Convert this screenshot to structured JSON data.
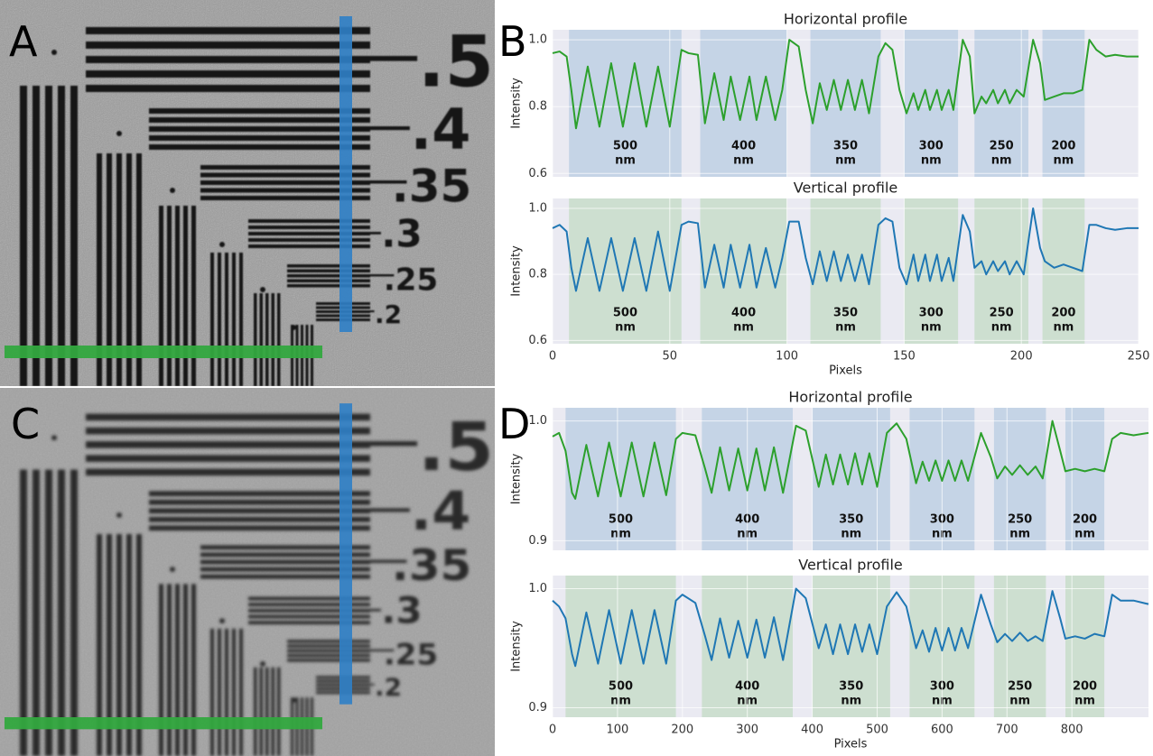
{
  "panels": [
    {
      "letter": "A",
      "target_labels": [
        ".5",
        ".4",
        ".35",
        ".3",
        ".25",
        ".2"
      ]
    },
    {
      "letter": "B"
    },
    {
      "letter": "C",
      "target_labels": [
        ".5",
        ".4",
        ".35",
        ".3",
        ".25",
        ".2"
      ]
    },
    {
      "letter": "D"
    }
  ],
  "chart_data": [
    {
      "type": "line",
      "title": "Horizontal profile",
      "ylabel": "Intensity",
      "x": [
        0,
        3,
        6,
        8,
        10,
        15,
        20,
        25,
        30,
        35,
        40,
        45,
        50,
        55,
        58,
        62,
        65,
        69,
        73,
        76,
        80,
        84,
        87,
        91,
        95,
        98,
        101,
        105,
        108,
        111,
        114,
        117,
        120,
        123,
        126,
        129,
        132,
        135,
        139,
        142,
        145,
        148,
        151,
        154,
        156,
        159,
        161,
        164,
        166,
        169,
        171,
        175,
        178,
        180,
        183,
        185,
        188,
        190,
        193,
        195,
        198,
        201,
        205,
        208,
        210,
        214,
        218,
        222,
        226,
        229,
        232,
        236,
        240,
        245,
        250
      ],
      "series": [
        {
          "color": "#2ca02c",
          "values": [
            0.96,
            0.965,
            0.95,
            0.85,
            0.735,
            0.92,
            0.74,
            0.93,
            0.74,
            0.93,
            0.74,
            0.92,
            0.74,
            0.97,
            0.96,
            0.955,
            0.75,
            0.9,
            0.76,
            0.89,
            0.76,
            0.89,
            0.76,
            0.89,
            0.76,
            0.85,
            1.0,
            0.98,
            0.85,
            0.75,
            0.87,
            0.79,
            0.88,
            0.79,
            0.88,
            0.79,
            0.88,
            0.78,
            0.95,
            0.99,
            0.97,
            0.85,
            0.78,
            0.84,
            0.79,
            0.85,
            0.79,
            0.85,
            0.79,
            0.85,
            0.79,
            1.0,
            0.95,
            0.78,
            0.83,
            0.81,
            0.85,
            0.81,
            0.85,
            0.81,
            0.85,
            0.83,
            1.0,
            0.93,
            0.82,
            0.83,
            0.84,
            0.84,
            0.85,
            1.0,
            0.97,
            0.95,
            0.955,
            0.95,
            0.95
          ]
        }
      ],
      "xlim": [
        0,
        250
      ],
      "xticks": [
        0,
        50,
        100,
        150,
        200,
        250
      ],
      "xtick_labels": false,
      "ylim": [
        0.59,
        1.03
      ],
      "yticks": [
        0.6,
        0.8,
        {
          "value": 1,
          "label": "1.0"
        }
      ],
      "grid": true,
      "region_color": "#c5d4e6",
      "regions": [
        {
          "name": "500",
          "unit": "nm",
          "start": 7,
          "end": 55
        },
        {
          "name": "400",
          "unit": "nm",
          "start": 63,
          "end": 100
        },
        {
          "name": "350",
          "unit": "nm",
          "start": 110,
          "end": 140
        },
        {
          "name": "300",
          "unit": "nm",
          "start": 150,
          "end": 173
        },
        {
          "name": "250",
          "unit": "nm",
          "start": 180,
          "end": 203
        },
        {
          "name": "200",
          "unit": "nm",
          "start": 209,
          "end": 227
        }
      ]
    },
    {
      "type": "line",
      "title": "Vertical profile",
      "ylabel": "Intensity",
      "xlabel": "Pixels",
      "x": [
        0,
        3,
        6,
        8,
        10,
        15,
        20,
        25,
        30,
        35,
        40,
        45,
        50,
        55,
        58,
        62,
        65,
        69,
        73,
        76,
        80,
        84,
        87,
        91,
        95,
        98,
        101,
        105,
        108,
        111,
        114,
        117,
        120,
        123,
        126,
        129,
        132,
        135,
        139,
        142,
        145,
        148,
        151,
        154,
        156,
        159,
        161,
        164,
        166,
        169,
        171,
        175,
        178,
        180,
        183,
        185,
        188,
        190,
        193,
        195,
        198,
        201,
        205,
        208,
        210,
        214,
        218,
        222,
        226,
        229,
        232,
        236,
        240,
        245,
        250
      ],
      "series": [
        {
          "color": "#1f77b4",
          "values": [
            0.94,
            0.95,
            0.93,
            0.82,
            0.75,
            0.91,
            0.75,
            0.91,
            0.75,
            0.91,
            0.75,
            0.93,
            0.75,
            0.95,
            0.96,
            0.955,
            0.76,
            0.89,
            0.76,
            0.89,
            0.76,
            0.89,
            0.76,
            0.88,
            0.76,
            0.85,
            0.96,
            0.96,
            0.85,
            0.77,
            0.87,
            0.78,
            0.87,
            0.78,
            0.86,
            0.78,
            0.86,
            0.77,
            0.95,
            0.97,
            0.96,
            0.82,
            0.77,
            0.86,
            0.78,
            0.86,
            0.78,
            0.86,
            0.78,
            0.85,
            0.78,
            0.98,
            0.93,
            0.82,
            0.84,
            0.8,
            0.84,
            0.81,
            0.84,
            0.8,
            0.84,
            0.8,
            1.0,
            0.88,
            0.84,
            0.82,
            0.83,
            0.82,
            0.81,
            0.95,
            0.95,
            0.94,
            0.935,
            0.94,
            0.94
          ]
        }
      ],
      "xlim": [
        0,
        250
      ],
      "xticks": [
        0,
        50,
        100,
        150,
        200,
        250
      ],
      "xtick_labels": true,
      "ylim": [
        0.59,
        1.03
      ],
      "yticks": [
        0.6,
        0.8,
        {
          "value": 1,
          "label": "1.0"
        }
      ],
      "grid": true,
      "region_color": "#cddfd0",
      "regions": [
        {
          "name": "500",
          "unit": "nm",
          "start": 7,
          "end": 55
        },
        {
          "name": "400",
          "unit": "nm",
          "start": 63,
          "end": 100
        },
        {
          "name": "350",
          "unit": "nm",
          "start": 110,
          "end": 140
        },
        {
          "name": "300",
          "unit": "nm",
          "start": 150,
          "end": 173
        },
        {
          "name": "250",
          "unit": "nm",
          "start": 180,
          "end": 203
        },
        {
          "name": "200",
          "unit": "nm",
          "start": 209,
          "end": 227
        }
      ]
    },
    {
      "type": "line",
      "title": "Horizontal profile",
      "ylabel": "Intensity",
      "x": [
        0,
        10,
        20,
        30,
        35,
        52,
        70,
        87,
        105,
        122,
        140,
        157,
        175,
        190,
        200,
        220,
        235,
        245,
        258,
        272,
        286,
        300,
        314,
        327,
        341,
        355,
        375,
        390,
        410,
        421,
        432,
        443,
        455,
        466,
        477,
        488,
        500,
        515,
        530,
        545,
        560,
        570,
        580,
        590,
        600,
        610,
        620,
        630,
        640,
        660,
        675,
        685,
        697,
        708,
        720,
        732,
        744,
        755,
        770,
        782,
        790,
        805,
        820,
        835,
        850,
        862,
        875,
        895,
        918
      ],
      "series": [
        {
          "color": "#2ca02c",
          "values": [
            0.987,
            0.99,
            0.975,
            0.94,
            0.935,
            0.98,
            0.937,
            0.982,
            0.937,
            0.982,
            0.937,
            0.982,
            0.938,
            0.985,
            0.99,
            0.988,
            0.96,
            0.94,
            0.978,
            0.942,
            0.977,
            0.942,
            0.977,
            0.942,
            0.978,
            0.94,
            0.996,
            0.992,
            0.945,
            0.972,
            0.947,
            0.972,
            0.947,
            0.973,
            0.947,
            0.973,
            0.945,
            0.99,
            0.998,
            0.985,
            0.948,
            0.966,
            0.95,
            0.967,
            0.95,
            0.967,
            0.95,
            0.967,
            0.95,
            0.99,
            0.97,
            0.952,
            0.962,
            0.955,
            0.963,
            0.955,
            0.962,
            0.952,
            1.0,
            0.975,
            0.958,
            0.96,
            0.958,
            0.96,
            0.958,
            0.985,
            0.99,
            0.988,
            0.99
          ]
        }
      ],
      "xlim": [
        0,
        918
      ],
      "xticks": [
        0,
        100,
        200,
        300,
        400,
        500,
        600,
        700,
        800
      ],
      "xtick_labels": false,
      "ylim": [
        0.892,
        1.011
      ],
      "yticks": [
        0.9,
        {
          "value": 1,
          "label": "1.0"
        }
      ],
      "grid": true,
      "region_color": "#c5d4e6",
      "regions": [
        {
          "name": "500",
          "unit": "nm",
          "start": 20,
          "end": 190
        },
        {
          "name": "400",
          "unit": "nm",
          "start": 230,
          "end": 370
        },
        {
          "name": "350",
          "unit": "nm",
          "start": 400,
          "end": 520
        },
        {
          "name": "300",
          "unit": "nm",
          "start": 550,
          "end": 650
        },
        {
          "name": "250",
          "unit": "nm",
          "start": 680,
          "end": 760
        },
        {
          "name": "200",
          "unit": "nm",
          "start": 790,
          "end": 850
        }
      ]
    },
    {
      "type": "line",
      "title": "Vertical profile",
      "ylabel": "Intensity",
      "xlabel": "Pixels",
      "x": [
        0,
        10,
        20,
        30,
        35,
        52,
        70,
        87,
        105,
        122,
        140,
        157,
        175,
        190,
        200,
        220,
        235,
        245,
        258,
        272,
        286,
        300,
        314,
        327,
        341,
        355,
        375,
        390,
        410,
        421,
        432,
        443,
        455,
        466,
        477,
        488,
        500,
        515,
        530,
        545,
        560,
        570,
        580,
        590,
        600,
        610,
        620,
        630,
        640,
        660,
        675,
        685,
        697,
        708,
        720,
        732,
        744,
        755,
        770,
        782,
        790,
        805,
        820,
        835,
        850,
        862,
        875,
        895,
        918
      ],
      "series": [
        {
          "color": "#1f77b4",
          "values": [
            0.99,
            0.985,
            0.975,
            0.945,
            0.935,
            0.98,
            0.937,
            0.982,
            0.937,
            0.982,
            0.937,
            0.982,
            0.937,
            0.99,
            0.995,
            0.988,
            0.96,
            0.94,
            0.975,
            0.942,
            0.973,
            0.942,
            0.974,
            0.942,
            0.976,
            0.94,
            1.0,
            0.992,
            0.95,
            0.97,
            0.945,
            0.97,
            0.945,
            0.97,
            0.947,
            0.97,
            0.945,
            0.985,
            0.997,
            0.985,
            0.95,
            0.965,
            0.947,
            0.967,
            0.948,
            0.967,
            0.948,
            0.967,
            0.95,
            0.995,
            0.97,
            0.955,
            0.962,
            0.956,
            0.963,
            0.956,
            0.96,
            0.956,
            0.998,
            0.975,
            0.958,
            0.96,
            0.958,
            0.962,
            0.96,
            0.995,
            0.99,
            0.99,
            0.987
          ]
        }
      ],
      "xlim": [
        0,
        918
      ],
      "xticks": [
        0,
        100,
        200,
        300,
        400,
        500,
        600,
        700,
        800
      ],
      "xtick_labels": true,
      "ylim": [
        0.892,
        1.011
      ],
      "yticks": [
        0.9,
        {
          "value": 1,
          "label": "1.0"
        }
      ],
      "grid": true,
      "region_color": "#cddfd0",
      "regions": [
        {
          "name": "500",
          "unit": "nm",
          "start": 20,
          "end": 190
        },
        {
          "name": "400",
          "unit": "nm",
          "start": 230,
          "end": 370
        },
        {
          "name": "350",
          "unit": "nm",
          "start": 400,
          "end": 520
        },
        {
          "name": "300",
          "unit": "nm",
          "start": 550,
          "end": 650
        },
        {
          "name": "250",
          "unit": "nm",
          "start": 680,
          "end": 760
        },
        {
          "name": "200",
          "unit": "nm",
          "start": 790,
          "end": 850
        }
      ]
    }
  ]
}
